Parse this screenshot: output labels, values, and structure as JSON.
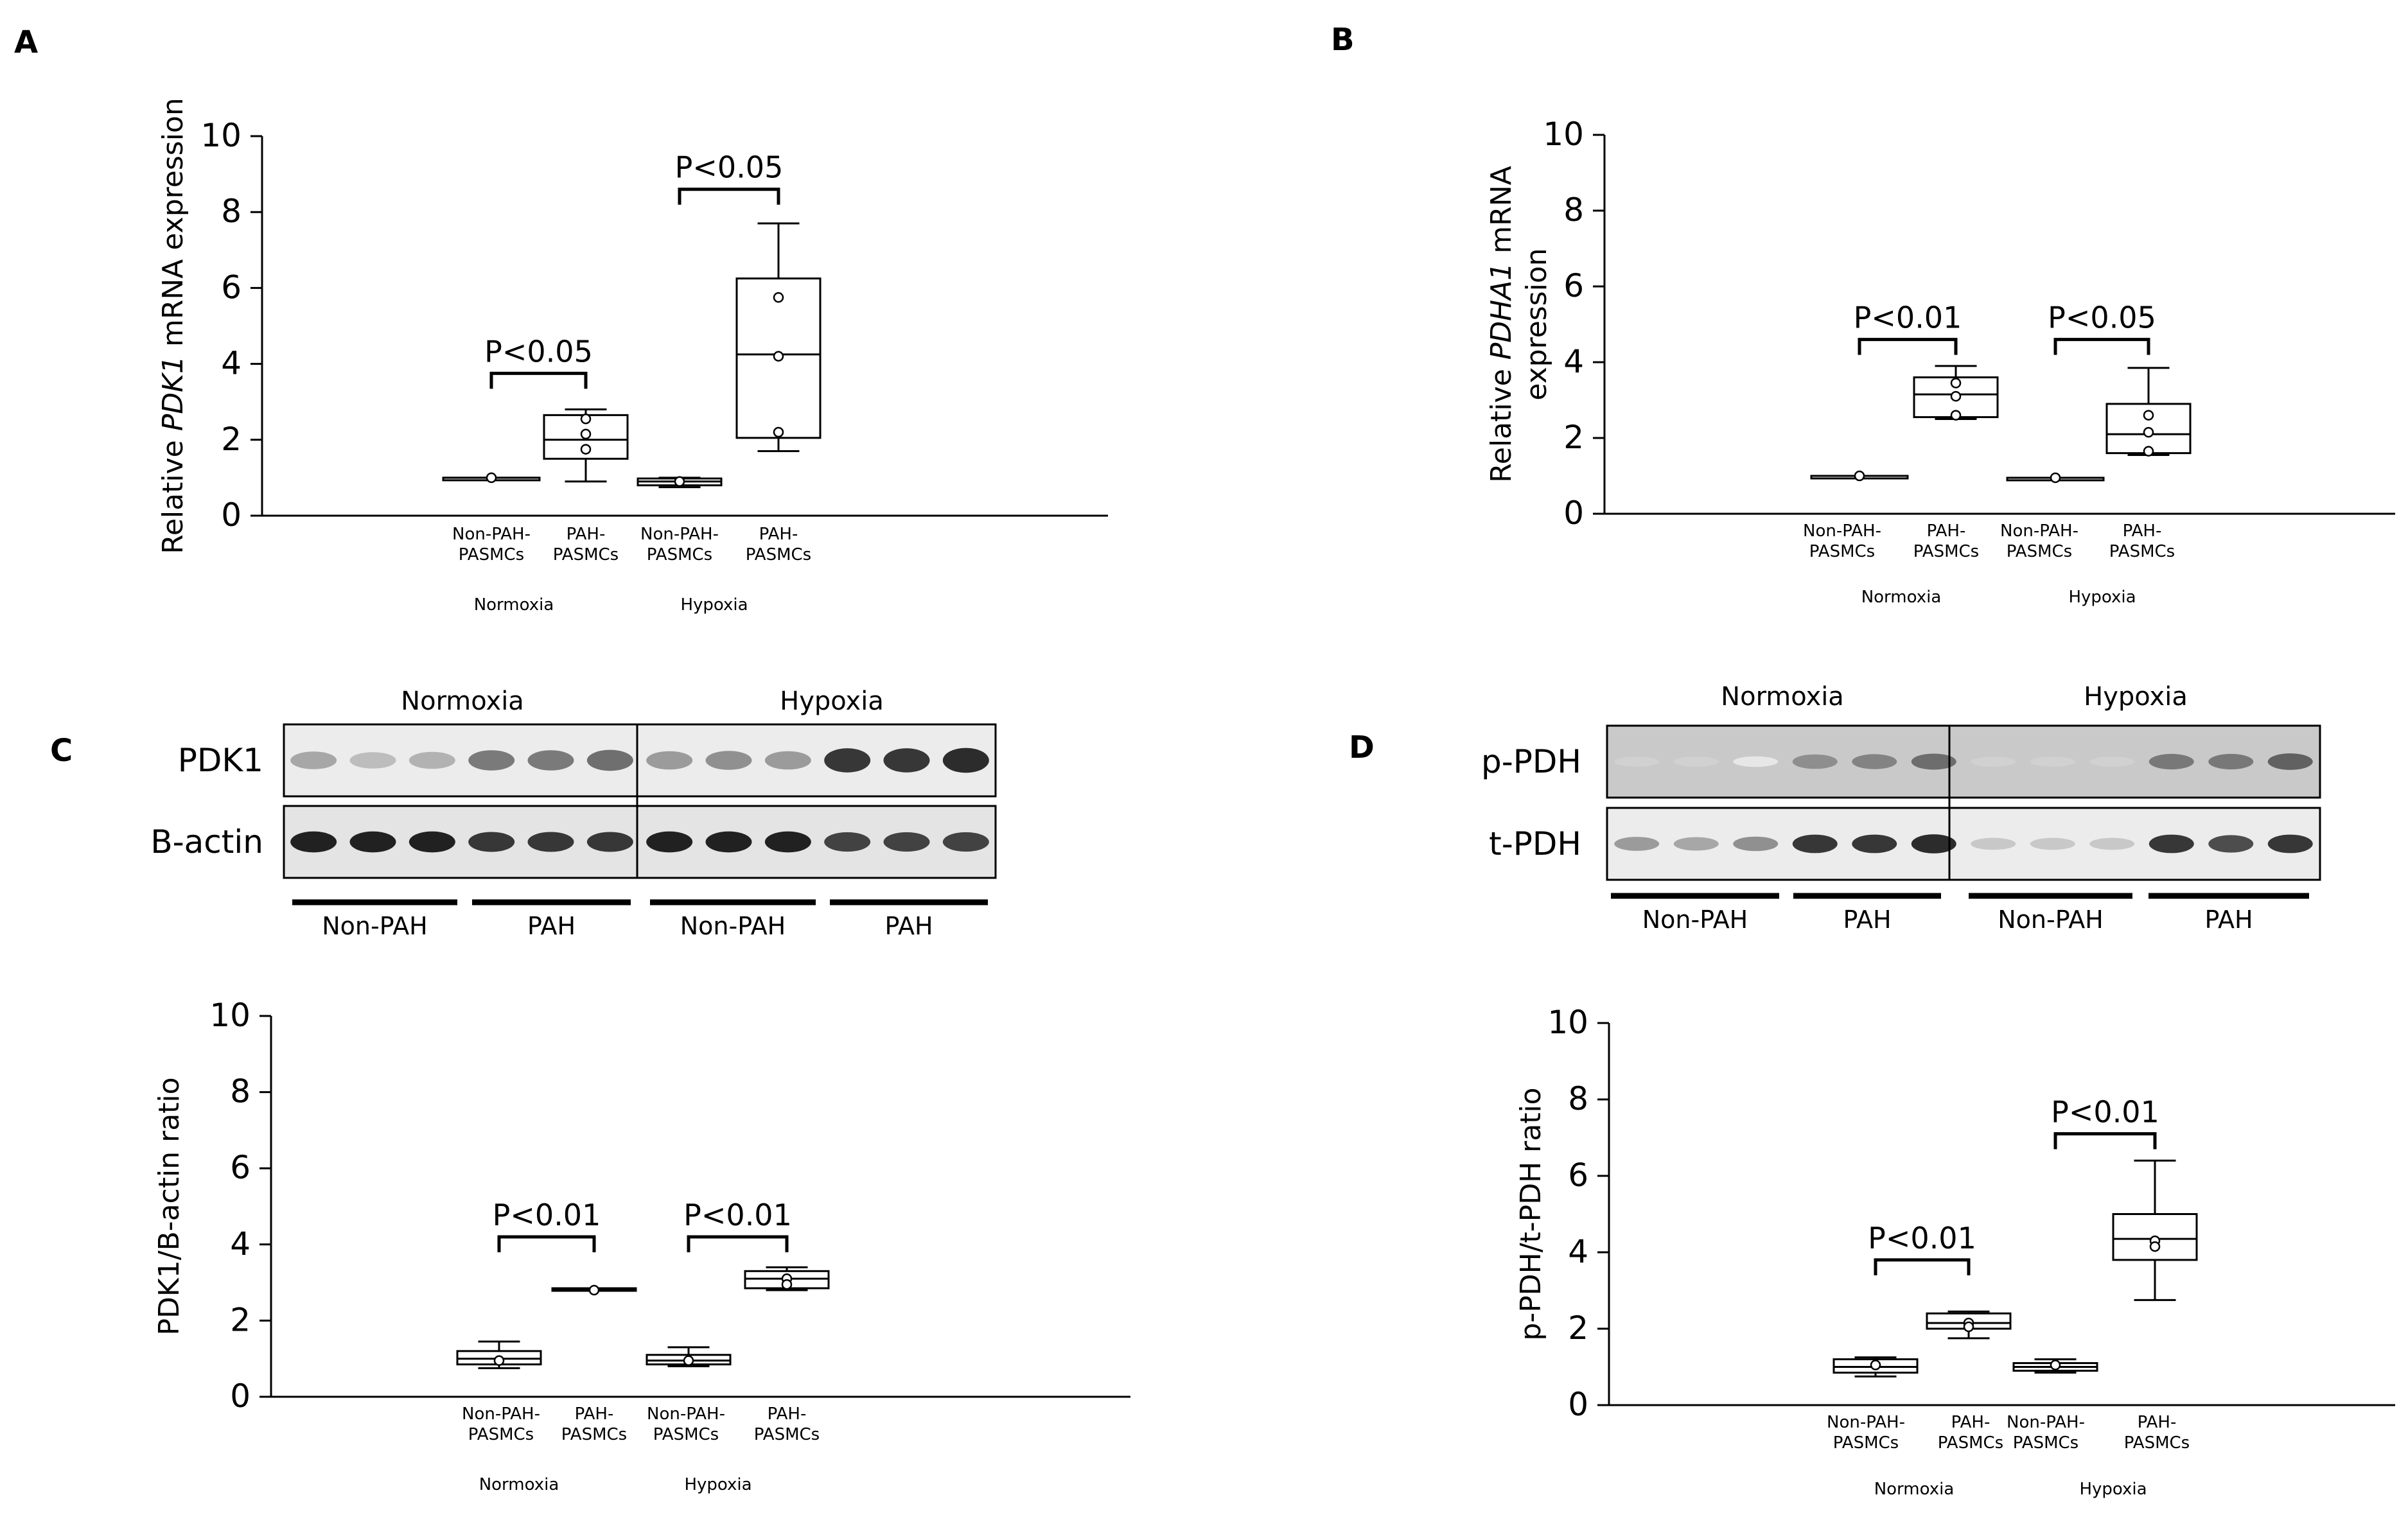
{
  "panel_labels": {
    "A": "A",
    "B": "B",
    "C": "C",
    "D": "D"
  },
  "chart_data": [
    {
      "id": "A",
      "type": "box",
      "ylabel_parts": [
        "Relative ",
        "PDK1",
        " mRNA  expression"
      ],
      "ylim": [
        0,
        10
      ],
      "yticks": [
        0,
        2,
        4,
        6,
        8,
        10
      ],
      "categories": [
        "Non-PAH-\nPASMCs",
        "PAH-\nPASMCs",
        "Non-PAH-\nPASMCs",
        "PAH-\nPASMCs"
      ],
      "groups": [
        "Normoxia",
        "Hypoxia"
      ],
      "boxes": [
        {
          "min": 1.0,
          "q1": 1.0,
          "median": 1.0,
          "q3": 1.0,
          "max": 1.0,
          "points": [
            1.0
          ]
        },
        {
          "min": 0.9,
          "q1": 1.5,
          "median": 2.0,
          "q3": 2.65,
          "max": 2.8,
          "points": [
            2.55,
            2.15,
            1.75
          ]
        },
        {
          "min": 0.75,
          "q1": 0.8,
          "median": 0.9,
          "q3": 0.98,
          "max": 1.0,
          "points": [
            0.9
          ]
        },
        {
          "min": 1.7,
          "q1": 2.05,
          "median": 4.25,
          "q3": 6.25,
          "max": 7.7,
          "points": [
            5.75,
            4.2,
            2.2
          ]
        }
      ],
      "significance": [
        {
          "from": 0,
          "to": 1,
          "label": "P<0.05",
          "y": 3.75
        },
        {
          "from": 2,
          "to": 3,
          "label": "P<0.05",
          "y": 8.6
        }
      ]
    },
    {
      "id": "B",
      "type": "box",
      "ylabel_parts": [
        "Relative ",
        "PDHA1",
        " mRNA",
        "expression"
      ],
      "ylim": [
        0,
        10
      ],
      "yticks": [
        0,
        2,
        4,
        6,
        8,
        10
      ],
      "categories": [
        "Non-PAH-\nPASMCs",
        "PAH-\nPASMCs",
        "Non-PAH-\nPASMCs",
        "PAH-\nPASMCs"
      ],
      "groups": [
        "Normoxia",
        "Hypoxia"
      ],
      "boxes": [
        {
          "min": 1.0,
          "q1": 1.0,
          "median": 1.0,
          "q3": 1.0,
          "max": 1.0,
          "points": [
            1.0
          ]
        },
        {
          "min": 2.5,
          "q1": 2.55,
          "median": 3.15,
          "q3": 3.6,
          "max": 3.9,
          "points": [
            3.45,
            3.1,
            2.6
          ]
        },
        {
          "min": 0.95,
          "q1": 0.95,
          "median": 0.95,
          "q3": 0.95,
          "max": 0.95,
          "points": [
            0.95
          ]
        },
        {
          "min": 1.55,
          "q1": 1.6,
          "median": 2.1,
          "q3": 2.9,
          "max": 3.85,
          "points": [
            2.6,
            2.15,
            1.65
          ]
        }
      ],
      "significance": [
        {
          "from": 0,
          "to": 1,
          "label": "P<0.01",
          "y": 4.6
        },
        {
          "from": 2,
          "to": 3,
          "label": "P<0.05",
          "y": 4.6
        }
      ]
    },
    {
      "id": "C",
      "type": "box",
      "ylabel_parts": [
        "PDK1/B-actin  ratio"
      ],
      "ylim": [
        0,
        10
      ],
      "yticks": [
        0,
        2,
        4,
        6,
        8,
        10
      ],
      "categories": [
        "Non-PAH-\nPASMCs",
        "PAH-\nPASMCs",
        "Non-PAH-\nPASMCs",
        "PAH-\nPASMCs"
      ],
      "groups": [
        "Normoxia",
        "Hypoxia"
      ],
      "boxes": [
        {
          "min": 0.75,
          "q1": 0.85,
          "median": 1.0,
          "q3": 1.2,
          "max": 1.45,
          "points": [
            0.95
          ]
        },
        {
          "min": 2.8,
          "q1": 2.8,
          "median": 2.8,
          "q3": 2.85,
          "max": 2.85,
          "points": [
            2.8
          ]
        },
        {
          "min": 0.8,
          "q1": 0.85,
          "median": 0.95,
          "q3": 1.1,
          "max": 1.3,
          "points": [
            0.95
          ]
        },
        {
          "min": 2.8,
          "q1": 2.85,
          "median": 3.1,
          "q3": 3.3,
          "max": 3.4,
          "points": [
            3.1,
            2.95
          ]
        }
      ],
      "significance": [
        {
          "from": 0,
          "to": 1,
          "label": "P<0.01",
          "y": 4.2
        },
        {
          "from": 2,
          "to": 3,
          "label": "P<0.01",
          "y": 4.2
        }
      ]
    },
    {
      "id": "D",
      "type": "box",
      "ylabel_parts": [
        "p-PDH/t-PDH  ratio"
      ],
      "ylim": [
        0,
        10
      ],
      "yticks": [
        0,
        2,
        4,
        6,
        8,
        10
      ],
      "categories": [
        "Non-PAH-\nPASMCs",
        "PAH-\nPASMCs",
        "Non-PAH-\nPASMCs",
        "PAH-\nPASMCs"
      ],
      "groups": [
        "Normoxia",
        "Hypoxia"
      ],
      "boxes": [
        {
          "min": 0.75,
          "q1": 0.85,
          "median": 1.0,
          "q3": 1.2,
          "max": 1.25,
          "points": [
            1.05
          ]
        },
        {
          "min": 1.75,
          "q1": 2.0,
          "median": 2.15,
          "q3": 2.4,
          "max": 2.45,
          "points": [
            2.15,
            2.05
          ]
        },
        {
          "min": 0.85,
          "q1": 0.9,
          "median": 1.0,
          "q3": 1.1,
          "max": 1.2,
          "points": [
            1.05
          ]
        },
        {
          "min": 2.75,
          "q1": 3.8,
          "median": 4.35,
          "q3": 5.0,
          "max": 6.4,
          "points": [
            4.3,
            4.15
          ]
        }
      ],
      "significance": [
        {
          "from": 0,
          "to": 1,
          "label": "P<0.01",
          "y": 3.8
        },
        {
          "from": 2,
          "to": 3,
          "label": "P<0.01",
          "y": 7.1
        }
      ]
    }
  ],
  "blots": {
    "C": {
      "conditions": [
        "Normoxia",
        "Hypoxia"
      ],
      "rows": [
        "PDK1",
        "B-actin"
      ],
      "groups": [
        "Non-PAH",
        "PAH",
        "Non-PAH",
        "PAH"
      ],
      "intensity": {
        "PDK1": [
          0.35,
          0.25,
          0.3,
          0.55,
          0.55,
          0.6,
          0.4,
          0.45,
          0.4,
          0.85,
          0.85,
          0.9
        ],
        "B-actin": [
          0.95,
          0.95,
          0.95,
          0.85,
          0.85,
          0.85,
          0.95,
          0.95,
          0.95,
          0.8,
          0.8,
          0.8
        ]
      }
    },
    "D": {
      "conditions": [
        "Normoxia",
        "Hypoxia"
      ],
      "rows": [
        "p-PDH",
        "t-PDH"
      ],
      "groups": [
        "Non-PAH",
        "PAH",
        "Non-PAH",
        "PAH"
      ],
      "intensity": {
        "p-PDH": [
          0.0,
          0.0,
          0.05,
          0.45,
          0.5,
          0.6,
          0.0,
          0.0,
          0.0,
          0.55,
          0.55,
          0.65
        ],
        "t-PDH": [
          0.4,
          0.35,
          0.45,
          0.85,
          0.85,
          0.9,
          0.2,
          0.2,
          0.2,
          0.85,
          0.75,
          0.85
        ]
      }
    }
  }
}
